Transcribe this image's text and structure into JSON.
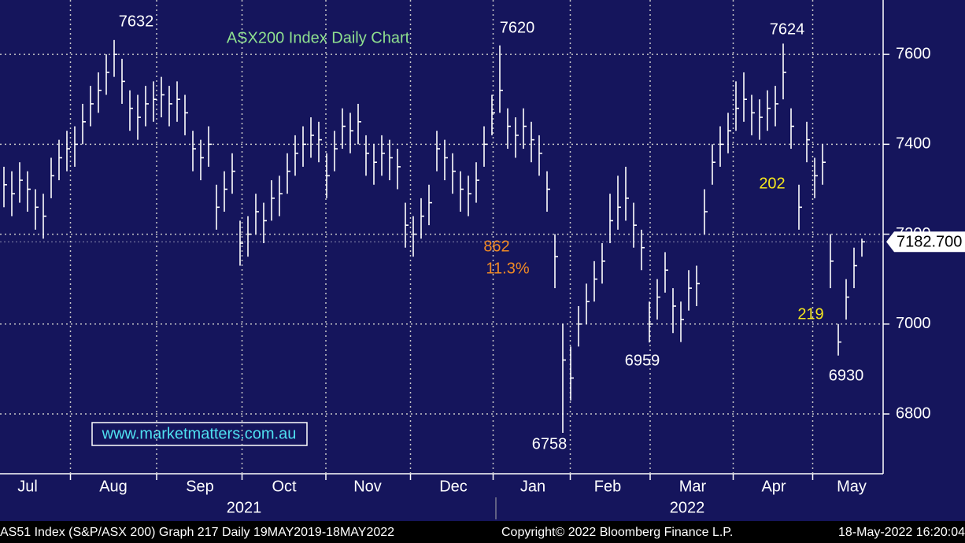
{
  "chart_data": {
    "type": "ohlc",
    "title": "ASX200 Index Daily Chart",
    "watermark": "www.marketmatters.com.au",
    "last_price_label": "7182.700",
    "series": [
      {
        "name": "AS51 Index",
        "color": "#ffffff",
        "high": [
          7350,
          7340,
          7360,
          7340,
          7300,
          7290,
          7370,
          7410,
          7430,
          7440,
          7490,
          7530,
          7560,
          7600,
          7632,
          7590,
          7520,
          7510,
          7530,
          7540,
          7550,
          7530,
          7540,
          7510,
          7430,
          7410,
          7440,
          7310,
          7340,
          7380,
          7230,
          7240,
          7290,
          7270,
          7320,
          7330,
          7380,
          7420,
          7440,
          7460,
          7450,
          7380,
          7430,
          7480,
          7470,
          7490,
          7420,
          7400,
          7420,
          7410,
          7390,
          7270,
          7240,
          7280,
          7310,
          7430,
          7410,
          7380,
          7340,
          7330,
          7360,
          7440,
          7510,
          7620,
          7480,
          7460,
          7480,
          7450,
          7420,
          7340,
          7200,
          7000,
          6950,
          7040,
          7090,
          7140,
          7180,
          7290,
          7330,
          7350,
          7270,
          7210,
          7050,
          7100,
          7160,
          7080,
          7050,
          7120,
          7130,
          7300,
          7400,
          7440,
          7470,
          7540,
          7560,
          7510,
          7500,
          7520,
          7530,
          7624,
          7480,
          7310,
          7450,
          7370,
          7400,
          7200,
          7000,
          7100,
          7170,
          7190
        ],
        "low": [
          7260,
          7240,
          7270,
          7250,
          7210,
          7190,
          7280,
          7320,
          7340,
          7350,
          7400,
          7440,
          7470,
          7510,
          7550,
          7490,
          7430,
          7410,
          7440,
          7450,
          7460,
          7440,
          7450,
          7420,
          7340,
          7320,
          7350,
          7210,
          7250,
          7290,
          7130,
          7150,
          7200,
          7180,
          7230,
          7240,
          7290,
          7330,
          7350,
          7370,
          7360,
          7280,
          7340,
          7390,
          7380,
          7400,
          7330,
          7310,
          7330,
          7320,
          7300,
          7170,
          7150,
          7190,
          7220,
          7340,
          7320,
          7290,
          7250,
          7240,
          7270,
          7350,
          7420,
          7470,
          7390,
          7370,
          7390,
          7360,
          7330,
          7250,
          7080,
          6758,
          6830,
          6950,
          7000,
          7050,
          7090,
          7180,
          7210,
          7230,
          7170,
          7120,
          6959,
          7010,
          7070,
          6980,
          6960,
          7030,
          7040,
          7200,
          7310,
          7350,
          7380,
          7430,
          7450,
          7420,
          7410,
          7430,
          7440,
          7500,
          7390,
          7210,
          7360,
          7280,
          7310,
          7080,
          6930,
          7010,
          7080,
          7150
        ],
        "close": [
          7310,
          7290,
          7320,
          7300,
          7260,
          7240,
          7330,
          7370,
          7390,
          7400,
          7450,
          7490,
          7520,
          7560,
          7600,
          7540,
          7480,
          7460,
          7490,
          7500,
          7510,
          7490,
          7500,
          7470,
          7390,
          7370,
          7400,
          7260,
          7300,
          7340,
          7180,
          7200,
          7250,
          7230,
          7280,
          7290,
          7340,
          7380,
          7400,
          7420,
          7410,
          7330,
          7390,
          7440,
          7430,
          7450,
          7380,
          7360,
          7380,
          7370,
          7350,
          7220,
          7200,
          7240,
          7270,
          7390,
          7370,
          7340,
          7300,
          7290,
          7320,
          7400,
          7470,
          7520,
          7440,
          7420,
          7440,
          7410,
          7380,
          7300,
          7150,
          6920,
          6880,
          7000,
          7050,
          7100,
          7140,
          7230,
          7260,
          7280,
          7220,
          7170,
          7000,
          7060,
          7120,
          7040,
          7010,
          7080,
          7090,
          7250,
          7360,
          7400,
          7430,
          7480,
          7500,
          7470,
          7460,
          7480,
          7490,
          7560,
          7440,
          7260,
          7410,
          7330,
          7360,
          7140,
          6960,
          7060,
          7130,
          7183
        ]
      }
    ],
    "xlim": [
      0,
      112.2
    ],
    "xticks": [
      {
        "value": 3.5,
        "label": "Jul"
      },
      {
        "value": 14.4,
        "label": "Aug"
      },
      {
        "value": 25.4,
        "label": "Sep"
      },
      {
        "value": 36.1,
        "label": "Oct"
      },
      {
        "value": 46.7,
        "label": "Nov"
      },
      {
        "value": 57.6,
        "label": "Dec"
      },
      {
        "value": 67.7,
        "label": "Jan"
      },
      {
        "value": 77.2,
        "label": "Feb"
      },
      {
        "value": 88,
        "label": "Mar"
      },
      {
        "value": 98.3,
        "label": "Apr"
      },
      {
        "value": 108.2,
        "label": "May"
      }
    ],
    "years": [
      "2021",
      "2022"
    ],
    "ylim": [
      6667,
      7721
    ],
    "yticks": [
      6800,
      7000,
      7200,
      7400,
      7600
    ],
    "grid": true,
    "annotations": [
      {
        "text": "7632",
        "color": "#ffffff"
      },
      {
        "text": "7620",
        "color": "#ffffff"
      },
      {
        "text": "7624",
        "color": "#ffffff"
      },
      {
        "text": "862",
        "color": "#f08a24"
      },
      {
        "text": "11.3%",
        "color": "#f08a24"
      },
      {
        "text": "6758",
        "color": "#ffffff"
      },
      {
        "text": "6959",
        "color": "#ffffff"
      },
      {
        "text": "6930",
        "color": "#ffffff"
      },
      {
        "text": "202",
        "color": "#f5e61e"
      },
      {
        "text": "219",
        "color": "#f5e61e"
      }
    ],
    "footer": [
      "AS51 Index (S&P/ASX 200) Graph 217  Daily 19MAY2019-18MAY2022",
      "Copyright© 2022 Bloomberg Finance L.P.",
      "18-May-2022 16:20:04"
    ]
  }
}
